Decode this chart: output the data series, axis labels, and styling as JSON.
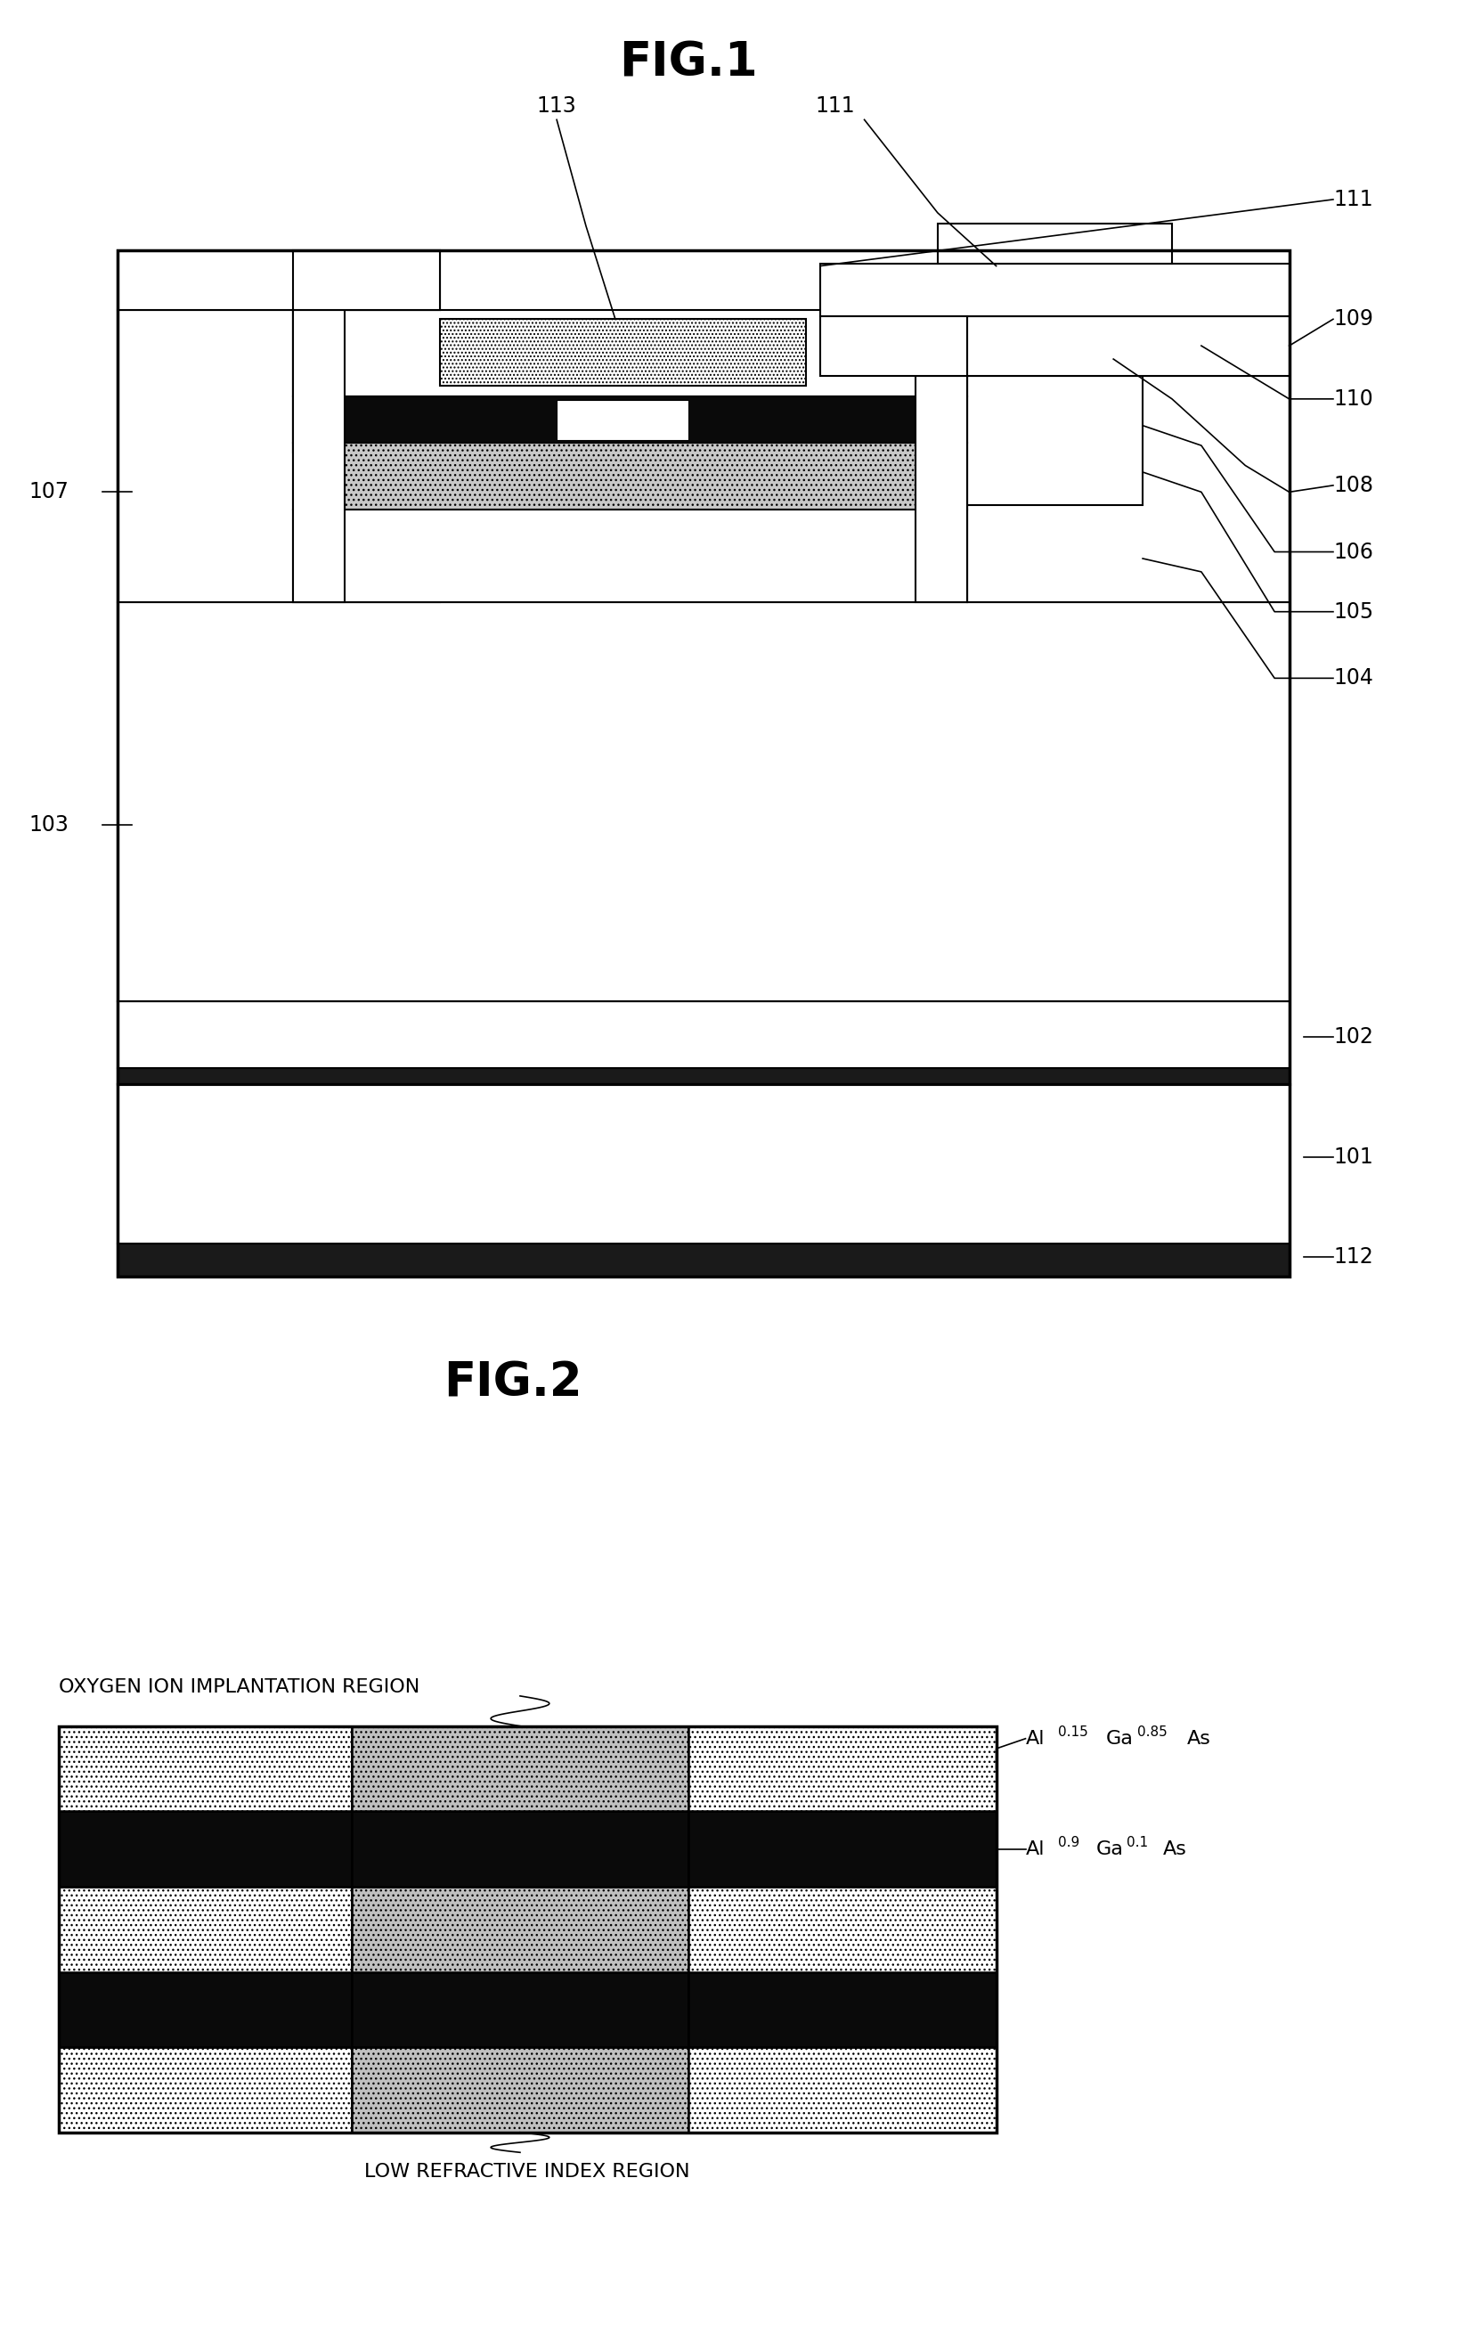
{
  "fig1_title": "FIG.1",
  "fig2_title": "FIG.2",
  "background_color": "#ffffff",
  "line_color": "#000000",
  "label_fontsize": 17,
  "title_fontsize": 38,
  "fig2_label_text_top": "OXYGEN ION IMPLANTATION REGION",
  "fig2_label_text_bottom": "LOW REFRACTIVE INDEX REGION",
  "fig2_label_right1": "Al0.15Ga0.85As",
  "fig2_label_right1_sub": [
    "0.15",
    "0.85"
  ],
  "fig2_label_right2": "Al0.9Ga0.1As",
  "fig2_label_right2_sub": [
    "0.9",
    "0.1"
  ]
}
